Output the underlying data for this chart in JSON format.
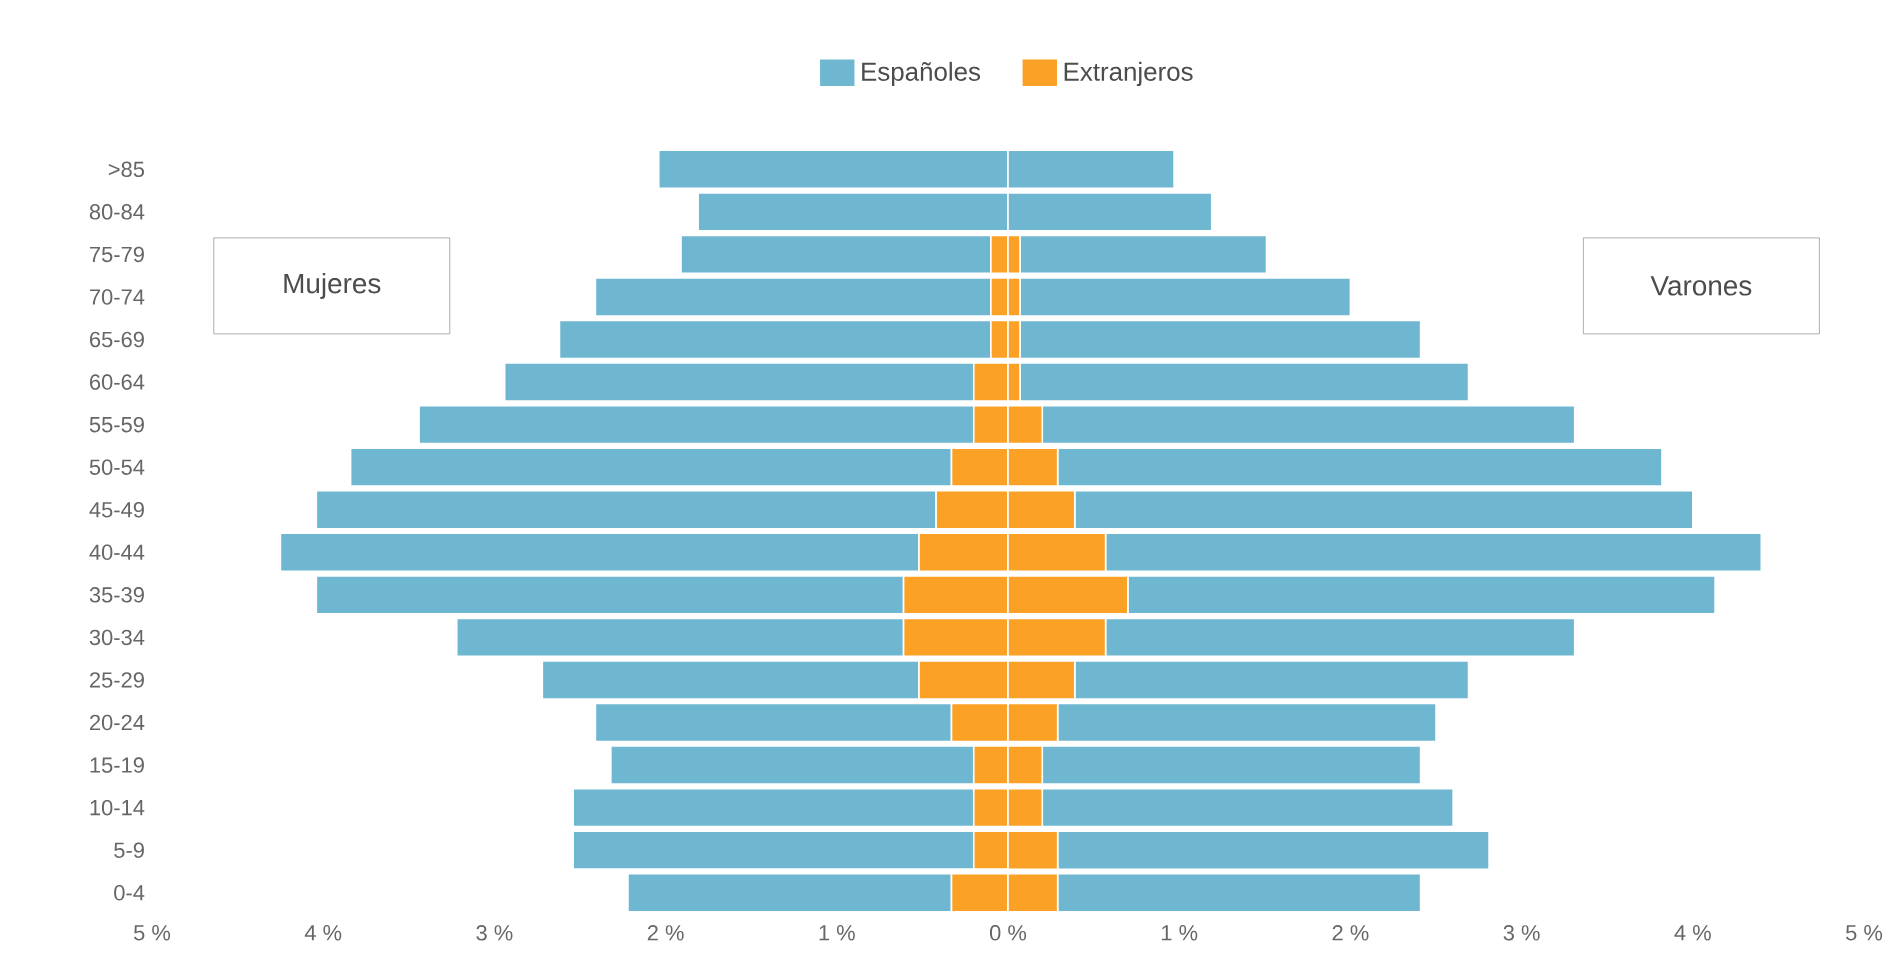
{
  "chart_data": {
    "type": "bar",
    "orientation": "horizontal",
    "stacked": true,
    "legend": "top",
    "categories": [
      ">85",
      "80-84",
      "75-79",
      "70-74",
      "65-69",
      "60-64",
      "55-59",
      "50-54",
      "45-49",
      "40-44",
      "35-39",
      "30-34",
      "25-29",
      "20-24",
      "15-19",
      "10-14",
      "5-9",
      "0-4"
    ],
    "series": [
      {
        "name": "Extranjeros",
        "color": "#fba226",
        "values": [
          0,
          0,
          -0.1,
          -0.1,
          -0.1,
          -0.2,
          -0.2,
          -0.33,
          -0.42,
          -0.52,
          -0.61,
          -0.61,
          -0.52,
          -0.33,
          -0.2,
          -0.2,
          -0.2,
          -0.33
        ]
      },
      {
        "name": "Españoles",
        "color": "#6fb7d1",
        "values": [
          -2.04,
          -1.81,
          -1.81,
          -2.31,
          -2.52,
          -2.74,
          -3.24,
          -3.51,
          -3.62,
          -3.73,
          -3.43,
          -2.61,
          -2.2,
          -2.08,
          -2.12,
          -2.34,
          -2.34,
          -1.89
        ]
      },
      {
        "color": "#fba226",
        "values": [
          0,
          0,
          0.07,
          0.07,
          0.07,
          0.07,
          0.2,
          0.29,
          0.39,
          0.57,
          0.7,
          0.57,
          0.39,
          0.29,
          0.2,
          0.2,
          0.29,
          0.29
        ]
      },
      {
        "color": "#6fb7d1",
        "values": [
          0.97,
          1.19,
          1.44,
          1.93,
          2.34,
          2.62,
          3.11,
          3.53,
          3.61,
          3.83,
          3.43,
          2.74,
          2.3,
          2.21,
          2.21,
          2.4,
          2.52,
          2.12
        ]
      }
    ],
    "xlim": [
      -5,
      5
    ],
    "xticks": [
      {
        "value": -5,
        "label": "5 %"
      },
      {
        "value": -4,
        "label": "4 %"
      },
      {
        "value": -3,
        "label": "3 %"
      },
      {
        "value": -2,
        "label": "2 %"
      },
      {
        "value": -1,
        "label": "1 %"
      },
      {
        "value": 0,
        "label": "0 %"
      },
      {
        "value": 1,
        "label": "1 %"
      },
      {
        "value": 2,
        "label": "2 %"
      },
      {
        "value": 3,
        "label": "3 %"
      },
      {
        "value": 4,
        "label": "4 %"
      },
      {
        "value": 5,
        "label": "5 %"
      }
    ],
    "annotations": [
      "Mujeres",
      "Varones"
    ]
  }
}
